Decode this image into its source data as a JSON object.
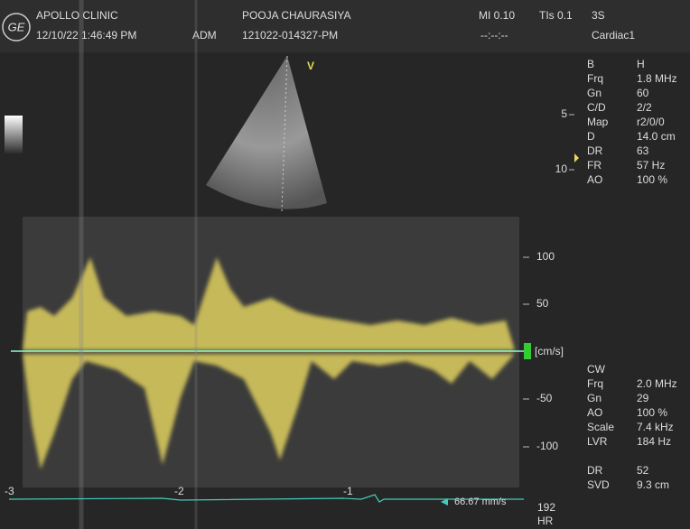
{
  "header": {
    "logo": "GE",
    "clinic": "APOLLO CLINIC",
    "datetime": "12/10/22 1:46:49 PM",
    "user": "ADM",
    "patient": "POOJA  CHAURASIYA",
    "exam_id": "121022-014327-PM",
    "mi": "MI 0.10",
    "tis": "TIs 0.1",
    "probe": "3S",
    "timer": "--:--:--",
    "preset": "Cardiac1"
  },
  "bmode": {
    "marker": "V",
    "mode": "B",
    "mode_sub": "H",
    "params": [
      [
        "Frq",
        "1.8 MHz"
      ],
      [
        "Gn",
        "60"
      ],
      [
        "C/D",
        "2/2"
      ],
      [
        "Map",
        "r2/0/0"
      ],
      [
        "D",
        "14.0 cm"
      ],
      [
        "DR",
        "63"
      ],
      [
        "FR",
        "57 Hz"
      ],
      [
        "AO",
        "100 %"
      ]
    ],
    "depth_ticks": [
      "5",
      "10"
    ]
  },
  "doppler": {
    "scale_ticks": [
      "100",
      "50",
      "-50",
      "-100"
    ],
    "unit": "[cm/s]"
  },
  "cw": {
    "mode": "CW",
    "params": [
      [
        "Frq",
        "2.0 MHz"
      ],
      [
        "Gn",
        "29"
      ],
      [
        "AO",
        "100 %"
      ],
      [
        "Scale",
        "7.4 kHz"
      ],
      [
        "LVR",
        "184 Hz"
      ]
    ],
    "params2": [
      [
        "DR",
        "52"
      ],
      [
        "SVD",
        "9.3 cm"
      ]
    ]
  },
  "time_axis": {
    "ticks": [
      "-3",
      "-2",
      "-1"
    ],
    "sweep": "66.67 mm/s"
  },
  "hr": {
    "value": "192",
    "label": "HR"
  }
}
